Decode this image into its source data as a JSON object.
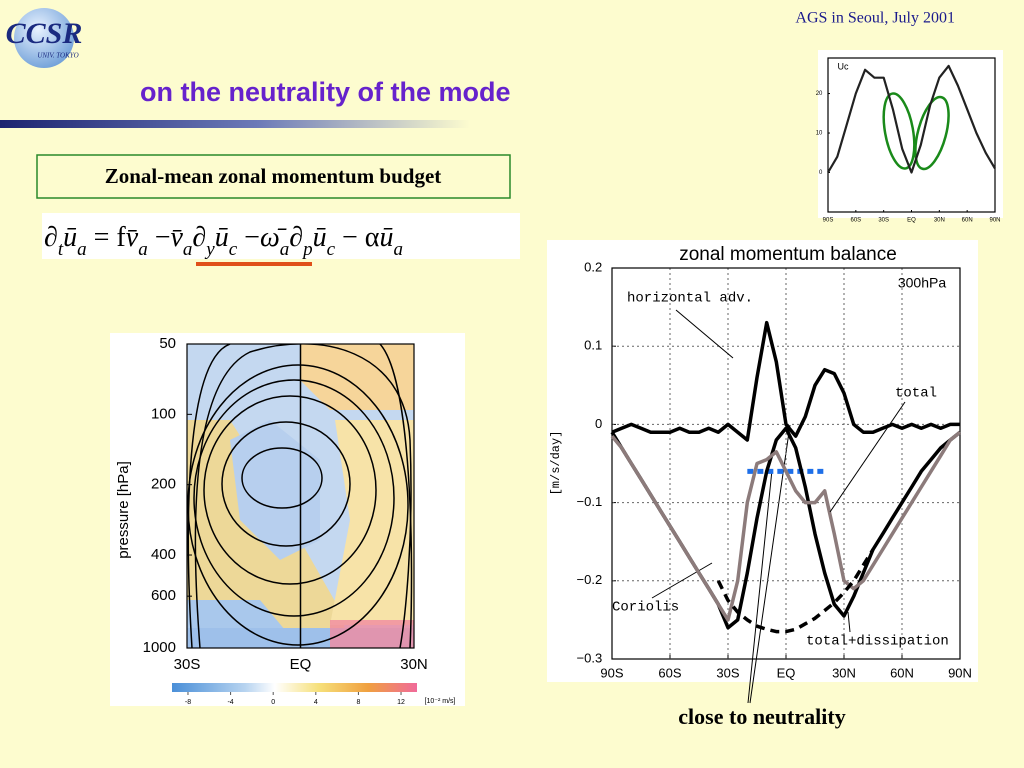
{
  "header": {
    "logo": "CCSR",
    "logo_sub": "UNIV. TOKYO",
    "conference": "AGS in Seoul, July 2001",
    "title": "on the neutrality of the mode"
  },
  "box_label": "Zonal-mean zonal momentum budget",
  "equation": [
    [
      "∂",
      "t"
    ],
    [
      "ū",
      "a"
    ],
    [
      " = f"
    ],
    [
      "v̄",
      "a"
    ],
    [
      " −"
    ],
    [
      "v̄",
      "a"
    ],
    [
      "∂",
      "y"
    ],
    [
      "ū",
      "c"
    ],
    [
      " −"
    ],
    [
      "ω̄",
      "a"
    ],
    [
      "∂",
      "p"
    ],
    [
      "ū",
      "c"
    ],
    [
      " − α"
    ],
    [
      "ū",
      "a"
    ]
  ],
  "annotation": "close to neutrality",
  "chart_data": [
    {
      "type": "line",
      "title": "zonal momentum balance",
      "subtitle": "300hPa",
      "ylabel": "[m/s/day]",
      "xlim": [
        -90,
        90
      ],
      "xticks": [
        {
          "value": -90,
          "label": "90S"
        },
        {
          "value": -60,
          "label": "60S"
        },
        {
          "value": -30,
          "label": "30S"
        },
        {
          "value": 0,
          "label": "EQ"
        },
        {
          "value": 30,
          "label": "30N"
        },
        {
          "value": 60,
          "label": "60N"
        },
        {
          "value": 90,
          "label": "90N"
        }
      ],
      "ylim": [
        -0.3,
        0.2
      ],
      "yticks": [
        {
          "value": -0.3,
          "label": "−0.3"
        },
        {
          "value": -0.2,
          "label": "−0.2"
        },
        {
          "value": -0.1,
          "label": "−0.1"
        },
        0,
        0.1,
        0.2
      ],
      "grid": true,
      "x": [
        -90,
        -85,
        -80,
        -75,
        -70,
        -65,
        -60,
        -55,
        -50,
        -45,
        -40,
        -35,
        -30,
        -25,
        -20,
        -15,
        -10,
        -5,
        0,
        5,
        10,
        15,
        20,
        25,
        30,
        35,
        40,
        45,
        50,
        55,
        60,
        65,
        70,
        75,
        80,
        85,
        90
      ],
      "series": [
        {
          "name": "horizontal adv.",
          "color": "#000000",
          "dash": false,
          "values": [
            -0.01,
            -0.005,
            0,
            -0.005,
            -0.01,
            -0.01,
            -0.01,
            -0.005,
            -0.01,
            -0.01,
            -0.005,
            -0.01,
            0,
            -0.01,
            -0.02,
            0.06,
            0.13,
            0.08,
            0,
            -0.015,
            0.01,
            0.05,
            0.07,
            0.065,
            0.04,
            0,
            -0.01,
            -0.01,
            -0.005,
            0,
            -0.005,
            0,
            -0.005,
            0,
            -0.005,
            0,
            0
          ]
        },
        {
          "name": "Coriolis",
          "color": "#000000",
          "dash": false,
          "values": [
            -0.01,
            -0.03,
            -0.05,
            -0.07,
            -0.09,
            -0.11,
            -0.13,
            -0.15,
            -0.17,
            -0.19,
            -0.21,
            -0.23,
            -0.26,
            -0.25,
            -0.19,
            -0.12,
            -0.06,
            -0.02,
            -0.005,
            -0.03,
            -0.08,
            -0.14,
            -0.19,
            -0.23,
            -0.245,
            -0.22,
            -0.19,
            -0.16,
            -0.14,
            -0.12,
            -0.1,
            -0.08,
            -0.06,
            -0.045,
            -0.03,
            -0.02,
            -0.01
          ]
        },
        {
          "name": "total",
          "color": "#8c7b7b",
          "dash": false,
          "values": [
            -0.015,
            -0.03,
            -0.05,
            -0.07,
            -0.09,
            -0.11,
            -0.13,
            -0.15,
            -0.17,
            -0.19,
            -0.21,
            -0.23,
            -0.25,
            -0.2,
            -0.1,
            -0.05,
            -0.045,
            -0.035,
            -0.06,
            -0.085,
            -0.1,
            -0.1,
            -0.085,
            -0.14,
            -0.2,
            -0.21,
            -0.2,
            -0.18,
            -0.16,
            -0.14,
            -0.12,
            -0.1,
            -0.08,
            -0.06,
            -0.04,
            -0.02,
            -0.01
          ]
        },
        {
          "name": "total+dissipation",
          "color": "#000000",
          "dash": true,
          "values": [
            null,
            null,
            null,
            null,
            null,
            null,
            null,
            null,
            null,
            null,
            null,
            -0.2,
            -0.225,
            -0.24,
            -0.25,
            -0.258,
            -0.262,
            -0.265,
            -0.265,
            -0.262,
            -0.255,
            -0.248,
            -0.238,
            -0.228,
            -0.215,
            -0.2,
            -0.18,
            -0.16,
            null,
            null,
            null,
            null,
            null,
            null,
            null,
            null,
            null
          ]
        }
      ],
      "reference_line": {
        "y": -0.06,
        "x": [
          -20,
          20
        ],
        "color": "#1e6fe8"
      }
    },
    {
      "type": "line",
      "ylabel": "Uc",
      "xlim": [
        -90,
        90
      ],
      "xticks": [
        {
          "value": -90,
          "label": "90S"
        },
        {
          "value": -60,
          "label": "60S"
        },
        {
          "value": -30,
          "label": "30S"
        },
        {
          "value": 0,
          "label": "EQ"
        },
        {
          "value": 30,
          "label": "30N"
        },
        {
          "value": 60,
          "label": "60N"
        },
        {
          "value": 90,
          "label": "90N"
        }
      ],
      "ylim": [
        -10,
        29
      ],
      "yticks": [
        0,
        10,
        20
      ],
      "grid": false,
      "x": [
        -90,
        -80,
        -70,
        -60,
        -50,
        -40,
        -30,
        -20,
        -10,
        0,
        10,
        20,
        30,
        40,
        50,
        60,
        70,
        80,
        90
      ],
      "series": [
        {
          "color": "#222222",
          "dash": false,
          "values": [
            0,
            4,
            12,
            20,
            26,
            24,
            24,
            16,
            6,
            0,
            7,
            17,
            24,
            27,
            22,
            16,
            10,
            5,
            1
          ]
        }
      ]
    },
    {
      "type": "contour",
      "ylabel": "pressure [hPa]",
      "log_y": true,
      "ylim": [
        1000,
        50
      ],
      "yticks": [
        50,
        100,
        200,
        400,
        600,
        1000
      ],
      "xlim": [
        -30,
        30
      ],
      "xticks": [
        {
          "value": -30,
          "label": "30S"
        },
        {
          "value": 0,
          "label": "EQ"
        },
        {
          "value": 30,
          "label": "30N"
        }
      ],
      "colorbar": {
        "lim": [
          -9.5,
          13.5
        ],
        "ticks": [
          -8,
          -4,
          0,
          4,
          8,
          12
        ],
        "unit": "[10⁻² m/s]"
      }
    }
  ]
}
